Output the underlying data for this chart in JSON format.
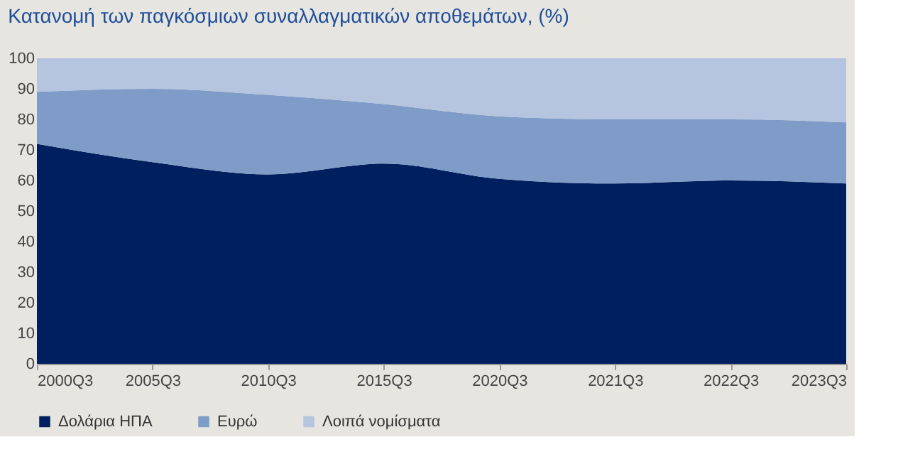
{
  "chart_data": {
    "type": "area",
    "title": "Κατανομή των παγκόσμιων συναλλαγματικών αποθεμάτων, (%)",
    "categories": [
      "2000Q3",
      "2005Q3",
      "2010Q3",
      "2015Q3",
      "2020Q3",
      "2021Q3",
      "2022Q3",
      "2023Q3"
    ],
    "stacked": true,
    "series": [
      {
        "name": "Δολάρια ΗΠΑ",
        "color": "#001f5f",
        "values": [
          72,
          66,
          62,
          65.5,
          60.5,
          59,
          60,
          59
        ]
      },
      {
        "name": "Ευρώ",
        "color": "#7f9cc8",
        "values": [
          17,
          24,
          26,
          19.5,
          20.5,
          21,
          20,
          20
        ]
      },
      {
        "name": "Λοιπά νομίσματα",
        "color": "#b5c4df",
        "values": [
          11,
          10,
          12,
          15,
          19,
          20,
          20,
          21
        ]
      }
    ],
    "ylim": [
      0,
      100
    ],
    "yticks": [
      0,
      10,
      20,
      30,
      40,
      50,
      60,
      70,
      80,
      90,
      100
    ],
    "grid": false,
    "legend": "bottom"
  }
}
